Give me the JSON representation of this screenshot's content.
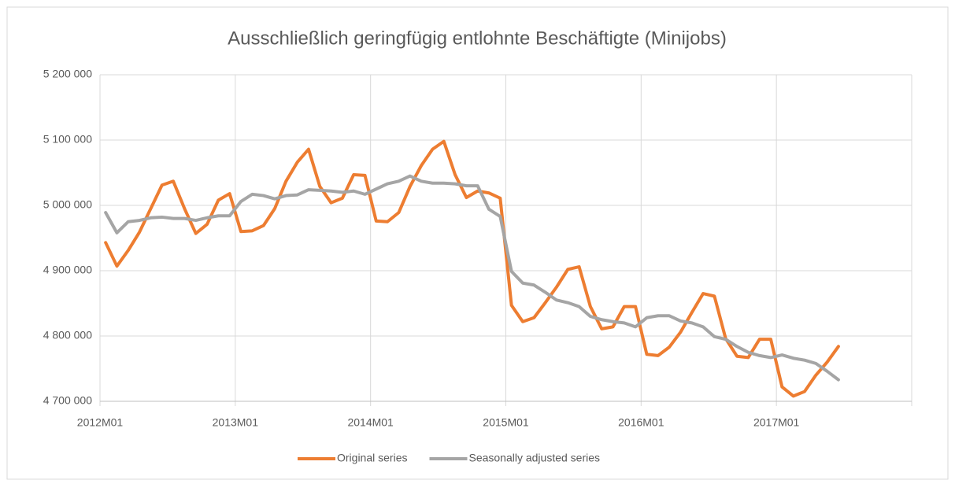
{
  "chart_data": {
    "type": "line",
    "title": "Ausschließlich geringfügig entlohnte Beschäftigte (Minijobs)",
    "categories": [
      "2012M01",
      null,
      null,
      null,
      null,
      null,
      null,
      null,
      null,
      null,
      null,
      null,
      "2013M01",
      null,
      null,
      null,
      null,
      null,
      null,
      null,
      null,
      null,
      null,
      null,
      "2014M01",
      null,
      null,
      null,
      null,
      null,
      null,
      null,
      null,
      null,
      null,
      null,
      "2015M01",
      null,
      null,
      null,
      null,
      null,
      null,
      null,
      null,
      null,
      null,
      null,
      "2016M01",
      null,
      null,
      null,
      null,
      null,
      null,
      null,
      null,
      null,
      null,
      null,
      "2017M01",
      null,
      null,
      null,
      null,
      null,
      null,
      null,
      null,
      null,
      null,
      null
    ],
    "series": [
      {
        "name": "Original series",
        "color": "#ED7D31",
        "values": [
          4943000,
          4907000,
          4931000,
          4959000,
          4995000,
          5031000,
          5037000,
          4995000,
          4957000,
          4971000,
          5008000,
          5018000,
          4960000,
          4961000,
          4969000,
          4995000,
          5037000,
          5066000,
          5086000,
          5029000,
          5004000,
          5011000,
          5047000,
          5046000,
          4976000,
          4975000,
          4989000,
          5029000,
          5061000,
          5086000,
          5098000,
          5047000,
          5012000,
          5022000,
          5019000,
          5011000,
          4847000,
          4822000,
          4828000,
          4851000,
          4875000,
          4902000,
          4906000,
          4845000,
          4811000,
          4814000,
          4845000,
          4845000,
          4772000,
          4770000,
          4783000,
          4806000,
          4836000,
          4865000,
          4861000,
          4796000,
          4769000,
          4767000,
          4795000,
          4795000,
          4722000,
          4708000,
          4715000,
          4740000,
          4760000,
          4784000,
          null,
          null,
          null,
          null,
          null,
          null
        ]
      },
      {
        "name": "Seasonally adjusted series",
        "color": "#A5A5A5",
        "values": [
          4989000,
          4958000,
          4975000,
          4977000,
          4981000,
          4982000,
          4980000,
          4980000,
          4977000,
          4981000,
          4984000,
          4984000,
          5006000,
          5017000,
          5015000,
          5010000,
          5015000,
          5016000,
          5024000,
          5023000,
          5022000,
          5020000,
          5022000,
          5017000,
          5025000,
          5033000,
          5037000,
          5045000,
          5037000,
          5034000,
          5034000,
          5033000,
          5030000,
          5030000,
          4994000,
          4983000,
          4899000,
          4881000,
          4878000,
          4867000,
          4855000,
          4851000,
          4845000,
          4830000,
          4825000,
          4822000,
          4820000,
          4814000,
          4828000,
          4831000,
          4831000,
          4823000,
          4820000,
          4814000,
          4799000,
          4795000,
          4784000,
          4775000,
          4770000,
          4767000,
          4771000,
          4766000,
          4763000,
          4758000,
          4746000,
          4733000,
          null,
          null,
          null,
          null,
          null,
          null
        ]
      }
    ],
    "ylim": [
      4700000,
      5200000
    ],
    "yticks": [
      {
        "value": 4700000,
        "label": "4 700 000"
      },
      {
        "value": 4800000,
        "label": "4 800 000"
      },
      {
        "value": 4900000,
        "label": "4 900 000"
      },
      {
        "value": 5000000,
        "label": "5 000 000"
      },
      {
        "value": 5100000,
        "label": "5 100 000"
      },
      {
        "value": 5200000,
        "label": "5 200 000"
      }
    ],
    "grid": true,
    "legend": "bottom"
  }
}
